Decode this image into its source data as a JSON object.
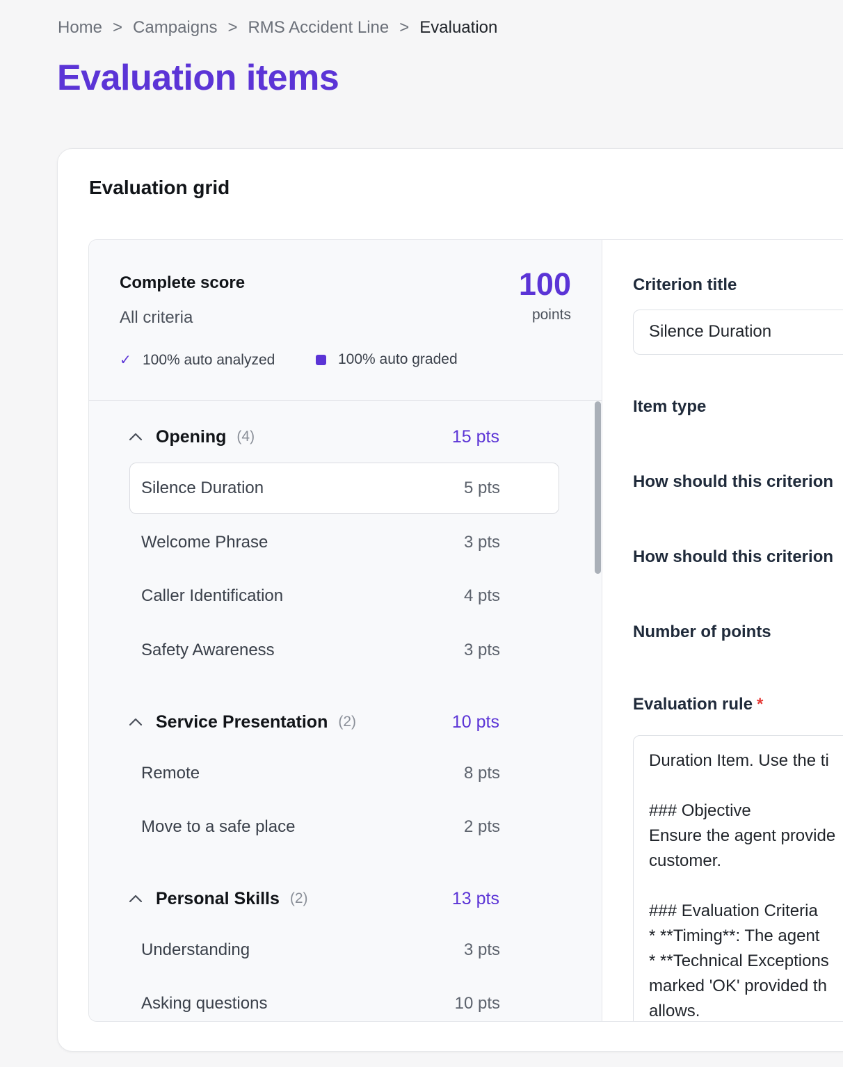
{
  "breadcrumb": {
    "items": [
      "Home",
      "Campaigns",
      "RMS Accident Line"
    ],
    "current": "Evaluation",
    "separator": ">"
  },
  "page": {
    "title": "Evaluation items"
  },
  "card": {
    "title": "Evaluation grid"
  },
  "summary": {
    "title": "Complete score",
    "subtitle": "All criteria",
    "value": "100",
    "unit": "points",
    "stat_analyzed": "100% auto analyzed",
    "stat_graded": "100% auto graded"
  },
  "sections": [
    {
      "name": "Opening",
      "count": "(4)",
      "pts": "15 pts",
      "items": [
        {
          "name": "Silence Duration",
          "pts": "5 pts",
          "selected": true
        },
        {
          "name": "Welcome Phrase",
          "pts": "3 pts"
        },
        {
          "name": "Caller Identification",
          "pts": "4 pts"
        },
        {
          "name": "Safety Awareness",
          "pts": "3 pts"
        }
      ]
    },
    {
      "name": "Service Presentation",
      "count": "(2)",
      "pts": "10 pts",
      "items": [
        {
          "name": "Remote",
          "pts": "8 pts"
        },
        {
          "name": "Move to a safe place",
          "pts": "2 pts"
        }
      ]
    },
    {
      "name": "Personal Skills",
      "count": "(2)",
      "pts": "13 pts",
      "items": [
        {
          "name": "Understanding",
          "pts": "3 pts"
        },
        {
          "name": "Asking questions",
          "pts": "10 pts"
        }
      ]
    }
  ],
  "detail": {
    "criterion_title_label": "Criterion title",
    "criterion_title_value": "Silence Duration",
    "item_type_label": "Item type",
    "how_label_1": "How should this criterion",
    "how_label_2": "How should this criterion",
    "points_label": "Number of points",
    "rule_label": "Evaluation rule",
    "rule_required": "*",
    "rule_text": "Duration Item. Use the ti\n\n### Objective\nEnsure the agent provide\ncustomer.\n\n### Evaluation Criteria\n* **Timing**: The agent\n* **Technical Exceptions\nmarked 'OK' provided th\nallows."
  },
  "colors": {
    "accent": "#5b34d6",
    "required": "#e53935"
  }
}
